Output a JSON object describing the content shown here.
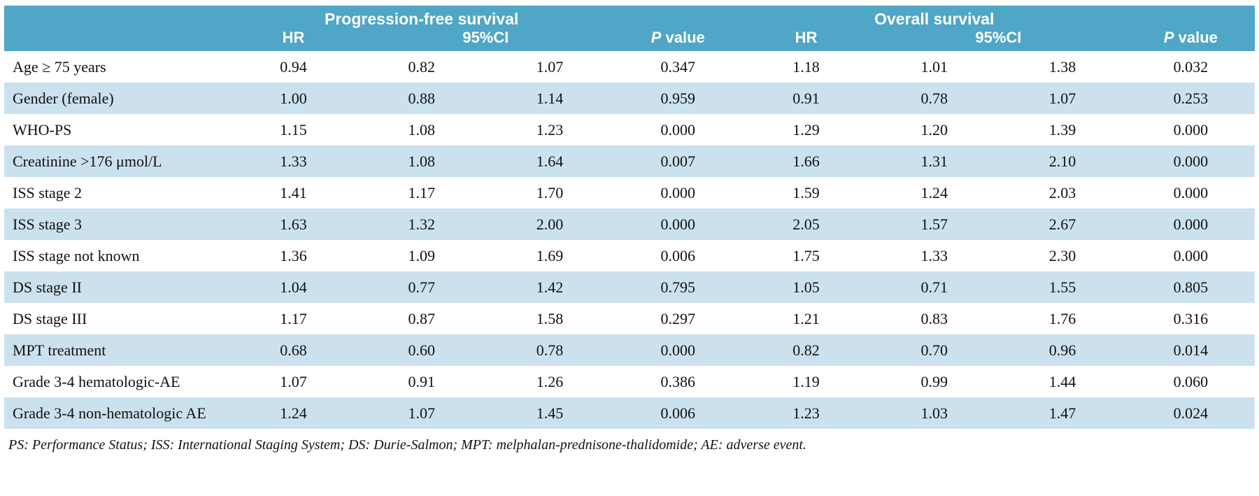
{
  "colors": {
    "header_bg": "#4fa6c6",
    "stripe_bg": "#cbe1ee",
    "header_text": "#ffffff"
  },
  "table": {
    "group_headers": {
      "pfs": "Progression-free survival",
      "os": "Overall survival"
    },
    "col_headers": {
      "hr": "HR",
      "ci": "95%CI",
      "p_italic": "P",
      "p_rest": " value"
    },
    "rows": [
      {
        "label": "Age ≥ 75 years",
        "pfs_hr": "0.94",
        "pfs_ci_lo": "0.82",
        "pfs_ci_hi": "1.07",
        "pfs_p": "0.347",
        "os_hr": "1.18",
        "os_ci_lo": "1.01",
        "os_ci_hi": "1.38",
        "os_p": "0.032"
      },
      {
        "label": "Gender (female)",
        "pfs_hr": "1.00",
        "pfs_ci_lo": "0.88",
        "pfs_ci_hi": "1.14",
        "pfs_p": "0.959",
        "os_hr": "0.91",
        "os_ci_lo": "0.78",
        "os_ci_hi": "1.07",
        "os_p": "0.253"
      },
      {
        "label": "WHO-PS",
        "pfs_hr": "1.15",
        "pfs_ci_lo": "1.08",
        "pfs_ci_hi": "1.23",
        "pfs_p": "0.000",
        "os_hr": "1.29",
        "os_ci_lo": "1.20",
        "os_ci_hi": "1.39",
        "os_p": "0.000"
      },
      {
        "label": "Creatinine >176 μmol/L",
        "pfs_hr": "1.33",
        "pfs_ci_lo": "1.08",
        "pfs_ci_hi": "1.64",
        "pfs_p": "0.007",
        "os_hr": "1.66",
        "os_ci_lo": "1.31",
        "os_ci_hi": "2.10",
        "os_p": "0.000"
      },
      {
        "label": "ISS stage 2",
        "pfs_hr": "1.41",
        "pfs_ci_lo": "1.17",
        "pfs_ci_hi": "1.70",
        "pfs_p": "0.000",
        "os_hr": "1.59",
        "os_ci_lo": "1.24",
        "os_ci_hi": "2.03",
        "os_p": "0.000"
      },
      {
        "label": "ISS stage 3",
        "pfs_hr": "1.63",
        "pfs_ci_lo": "1.32",
        "pfs_ci_hi": "2.00",
        "pfs_p": "0.000",
        "os_hr": "2.05",
        "os_ci_lo": "1.57",
        "os_ci_hi": "2.67",
        "os_p": "0.000"
      },
      {
        "label": "ISS stage not known",
        "pfs_hr": "1.36",
        "pfs_ci_lo": "1.09",
        "pfs_ci_hi": "1.69",
        "pfs_p": "0.006",
        "os_hr": "1.75",
        "os_ci_lo": "1.33",
        "os_ci_hi": "2.30",
        "os_p": "0.000"
      },
      {
        "label": "DS stage II",
        "pfs_hr": "1.04",
        "pfs_ci_lo": "0.77",
        "pfs_ci_hi": "1.42",
        "pfs_p": "0.795",
        "os_hr": "1.05",
        "os_ci_lo": "0.71",
        "os_ci_hi": "1.55",
        "os_p": "0.805"
      },
      {
        "label": "DS stage III",
        "pfs_hr": "1.17",
        "pfs_ci_lo": "0.87",
        "pfs_ci_hi": "1.58",
        "pfs_p": "0.297",
        "os_hr": "1.21",
        "os_ci_lo": "0.83",
        "os_ci_hi": "1.76",
        "os_p": "0.316"
      },
      {
        "label": "MPT treatment",
        "pfs_hr": "0.68",
        "pfs_ci_lo": "0.60",
        "pfs_ci_hi": "0.78",
        "pfs_p": "0.000",
        "os_hr": "0.82",
        "os_ci_lo": "0.70",
        "os_ci_hi": "0.96",
        "os_p": "0.014"
      },
      {
        "label": "Grade 3-4 hematologic-AE",
        "pfs_hr": "1.07",
        "pfs_ci_lo": "0.91",
        "pfs_ci_hi": "1.26",
        "pfs_p": "0.386",
        "os_hr": "1.19",
        "os_ci_lo": "0.99",
        "os_ci_hi": "1.44",
        "os_p": "0.060"
      },
      {
        "label": "Grade 3-4 non-hematologic AE",
        "pfs_hr": "1.24",
        "pfs_ci_lo": "1.07",
        "pfs_ci_hi": "1.45",
        "pfs_p": "0.006",
        "os_hr": "1.23",
        "os_ci_lo": "1.03",
        "os_ci_hi": "1.47",
        "os_p": "0.024"
      }
    ],
    "footnote": "PS: Performance Status; ISS: International Staging System; DS: Durie-Salmon; MPT: melphalan-prednisone-thalidomide; AE: adverse event."
  }
}
